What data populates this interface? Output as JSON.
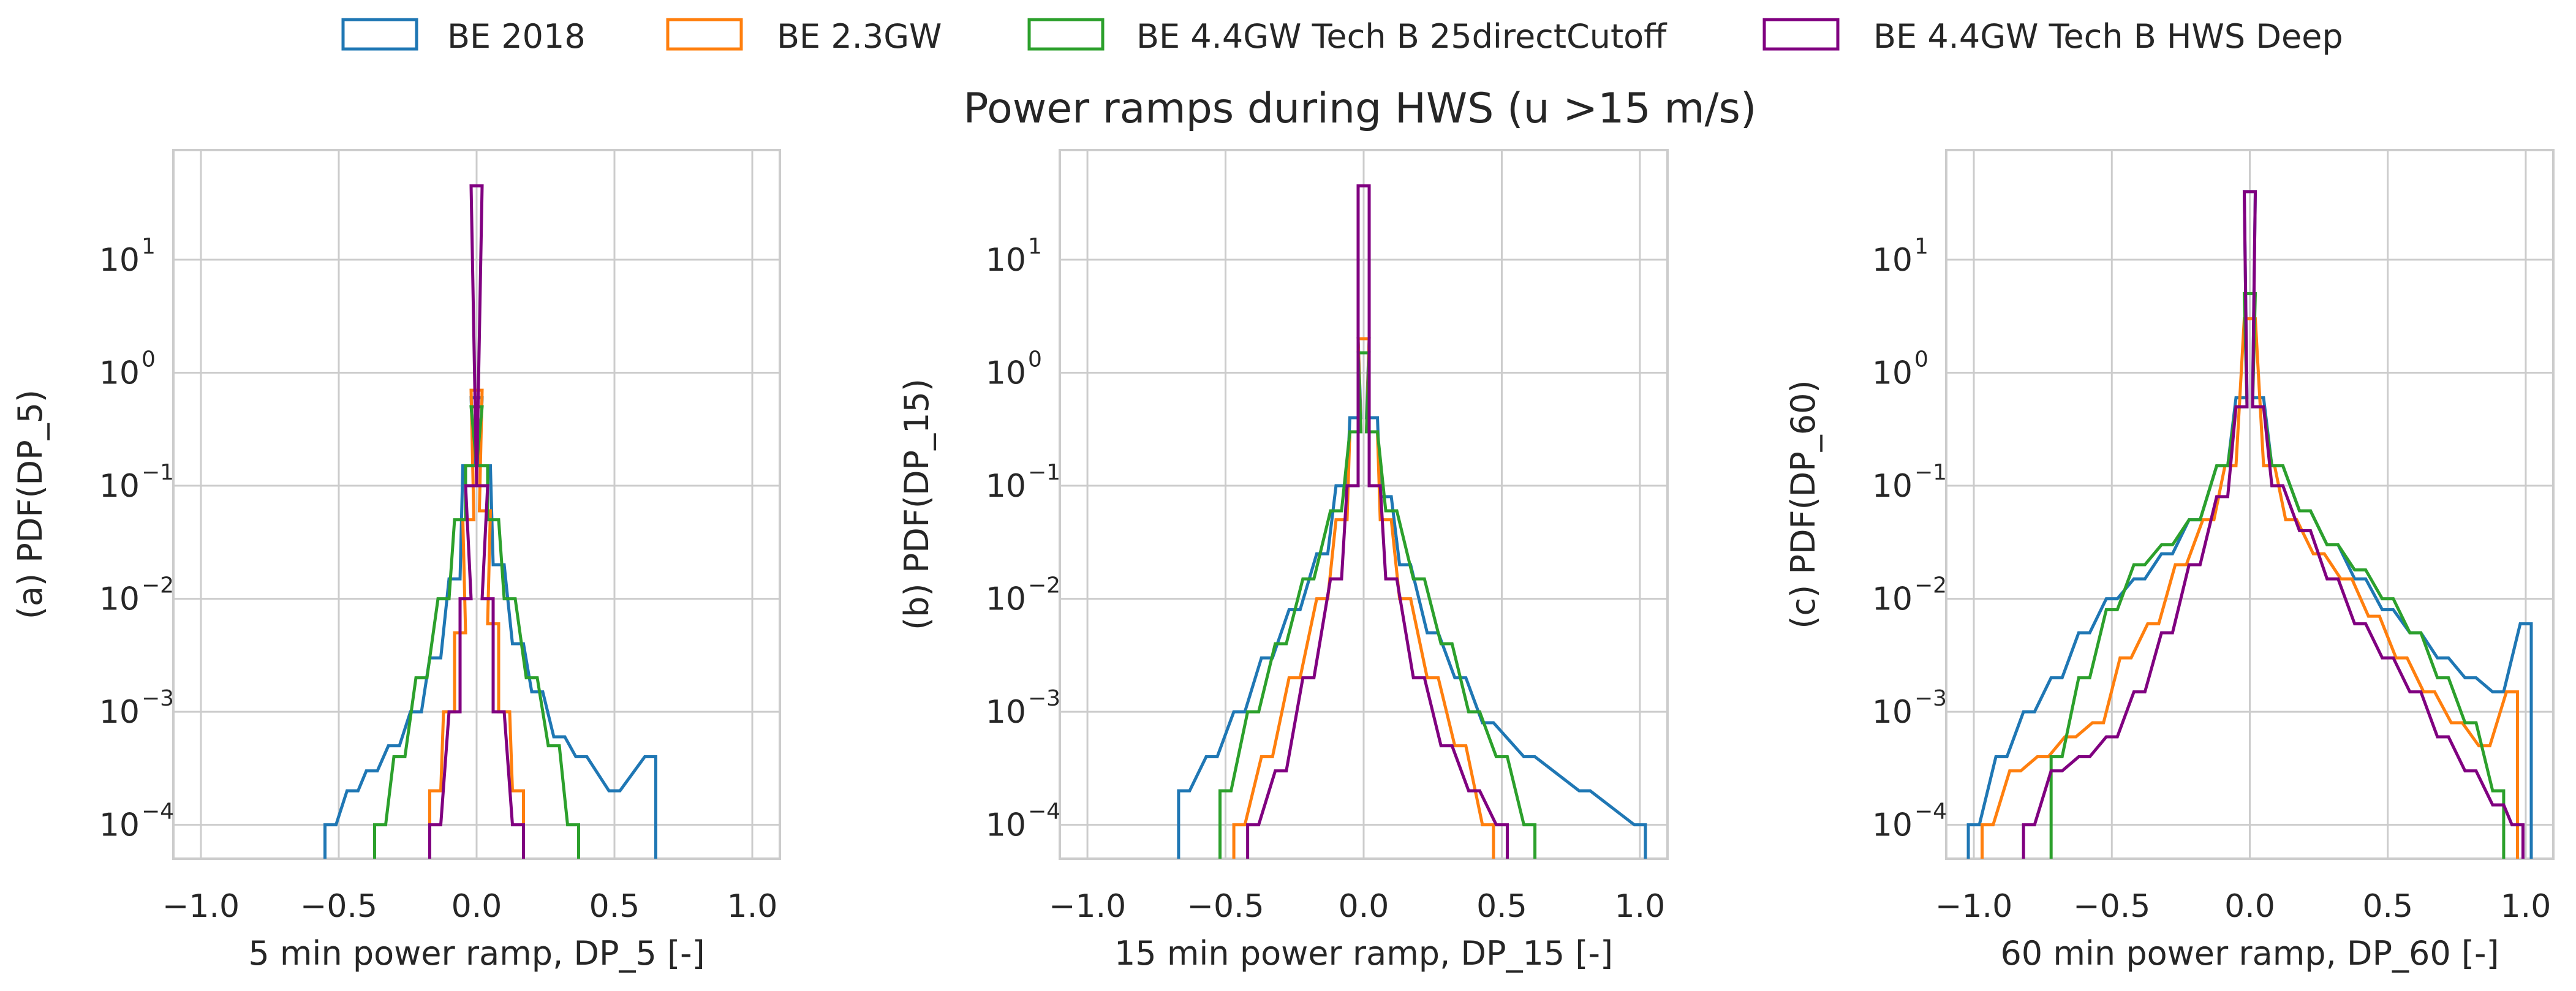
{
  "figure": {
    "title": "Power ramps during HWS (u >15 m/s)",
    "legend": [
      {
        "label": "BE 2018",
        "color": "#1f77b4"
      },
      {
        "label": "BE 2.3GW",
        "color": "#ff7f0e"
      },
      {
        "label": "BE 4.4GW Tech B 25directCutoff",
        "color": "#2ca02c"
      },
      {
        "label": "BE 4.4GW Tech B HWS Deep",
        "color": "#800080"
      }
    ]
  },
  "chart_data": [
    {
      "type": "histogram-step",
      "xlabel": "5 min power ramp, DP_5 [-]",
      "ylabel": "(a) PDF(DP_5)",
      "xlim": [
        -1.1,
        1.1
      ],
      "ylim_log10": [
        -4.3,
        1.97
      ],
      "yscale": "log",
      "grid": true,
      "xticks": [
        "-1.0",
        "-0.5",
        "0.0",
        "0.5",
        "1.0"
      ],
      "yticks_exp": [
        "1",
        "0",
        "-1",
        "-2",
        "-3",
        "-4"
      ],
      "series": [
        {
          "name": "BE 2018",
          "points": [
            [
              -0.53,
              0.0001
            ],
            [
              -0.45,
              0.0002
            ],
            [
              -0.38,
              0.0003
            ],
            [
              -0.3,
              0.0005
            ],
            [
              -0.22,
              0.001
            ],
            [
              -0.15,
              0.003
            ],
            [
              -0.08,
              0.015
            ],
            [
              -0.03,
              0.15
            ],
            [
              0,
              0.6
            ],
            [
              0.03,
              0.15
            ],
            [
              0.08,
              0.02
            ],
            [
              0.15,
              0.004
            ],
            [
              0.22,
              0.0015
            ],
            [
              0.3,
              0.0006
            ],
            [
              0.38,
              0.0004
            ],
            [
              0.5,
              0.0002
            ],
            [
              0.63,
              0.0004
            ]
          ]
        },
        {
          "name": "BE 2.3GW",
          "points": [
            [
              -0.15,
              0.0002
            ],
            [
              -0.1,
              0.001
            ],
            [
              -0.06,
              0.005
            ],
            [
              -0.03,
              0.05
            ],
            [
              0,
              0.7
            ],
            [
              0.03,
              0.06
            ],
            [
              0.06,
              0.006
            ],
            [
              0.1,
              0.001
            ],
            [
              0.15,
              0.0002
            ]
          ]
        },
        {
          "name": "BE 4.4GW Tech B 25directCutoff",
          "points": [
            [
              -0.35,
              0.0001
            ],
            [
              -0.28,
              0.0004
            ],
            [
              -0.2,
              0.002
            ],
            [
              -0.12,
              0.01
            ],
            [
              -0.06,
              0.05
            ],
            [
              -0.02,
              0.15
            ],
            [
              0,
              0.5
            ],
            [
              0.02,
              0.15
            ],
            [
              0.06,
              0.05
            ],
            [
              0.12,
              0.01
            ],
            [
              0.2,
              0.002
            ],
            [
              0.28,
              0.0005
            ],
            [
              0.35,
              0.0001
            ]
          ]
        },
        {
          "name": "BE 4.4GW Tech B HWS Deep",
          "points": [
            [
              -0.15,
              0.0001
            ],
            [
              -0.08,
              0.001
            ],
            [
              -0.04,
              0.01
            ],
            [
              -0.02,
              0.1
            ],
            [
              0,
              45
            ],
            [
              0.02,
              0.1
            ],
            [
              0.04,
              0.01
            ],
            [
              0.08,
              0.001
            ],
            [
              0.15,
              0.0001
            ]
          ]
        }
      ]
    },
    {
      "type": "histogram-step",
      "xlabel": "15 min power ramp, DP_15 [-]",
      "ylabel": "(b) PDF(DP_15)",
      "xlim": [
        -1.1,
        1.1
      ],
      "ylim_log10": [
        -4.3,
        1.97
      ],
      "yscale": "log",
      "grid": true,
      "xticks": [
        "-1.0",
        "-0.5",
        "0.0",
        "0.5",
        "1.0"
      ],
      "yticks_exp": [
        "1",
        "0",
        "-1",
        "-2",
        "-3",
        "-4"
      ],
      "series": [
        {
          "name": "BE 2018",
          "points": [
            [
              -0.65,
              0.0002
            ],
            [
              -0.55,
              0.0004
            ],
            [
              -0.45,
              0.001
            ],
            [
              -0.35,
              0.003
            ],
            [
              -0.25,
              0.008
            ],
            [
              -0.15,
              0.025
            ],
            [
              -0.08,
              0.1
            ],
            [
              -0.03,
              0.4
            ],
            [
              0,
              2
            ],
            [
              0.03,
              0.4
            ],
            [
              0.08,
              0.08
            ],
            [
              0.15,
              0.02
            ],
            [
              0.25,
              0.005
            ],
            [
              0.35,
              0.002
            ],
            [
              0.45,
              0.0008
            ],
            [
              0.6,
              0.0004
            ],
            [
              0.8,
              0.0002
            ],
            [
              1.0,
              0.0001
            ]
          ]
        },
        {
          "name": "BE 2.3GW",
          "points": [
            [
              -0.45,
              0.0001
            ],
            [
              -0.35,
              0.0004
            ],
            [
              -0.25,
              0.002
            ],
            [
              -0.15,
              0.01
            ],
            [
              -0.08,
              0.05
            ],
            [
              -0.03,
              0.3
            ],
            [
              0,
              2
            ],
            [
              0.03,
              0.3
            ],
            [
              0.08,
              0.05
            ],
            [
              0.15,
              0.01
            ],
            [
              0.25,
              0.002
            ],
            [
              0.35,
              0.0005
            ],
            [
              0.45,
              0.0001
            ]
          ]
        },
        {
          "name": "BE 4.4GW Tech B 25directCutoff",
          "points": [
            [
              -0.5,
              0.0002
            ],
            [
              -0.4,
              0.001
            ],
            [
              -0.3,
              0.004
            ],
            [
              -0.2,
              0.015
            ],
            [
              -0.1,
              0.06
            ],
            [
              -0.03,
              0.3
            ],
            [
              0,
              1.5
            ],
            [
              0.03,
              0.3
            ],
            [
              0.1,
              0.06
            ],
            [
              0.2,
              0.015
            ],
            [
              0.3,
              0.004
            ],
            [
              0.4,
              0.001
            ],
            [
              0.5,
              0.0004
            ],
            [
              0.6,
              0.0001
            ]
          ]
        },
        {
          "name": "BE 4.4GW Tech B HWS Deep",
          "points": [
            [
              -0.4,
              0.0001
            ],
            [
              -0.3,
              0.0003
            ],
            [
              -0.2,
              0.002
            ],
            [
              -0.1,
              0.015
            ],
            [
              -0.04,
              0.1
            ],
            [
              0,
              45
            ],
            [
              0.04,
              0.1
            ],
            [
              0.1,
              0.015
            ],
            [
              0.2,
              0.002
            ],
            [
              0.3,
              0.0005
            ],
            [
              0.4,
              0.0002
            ],
            [
              0.5,
              0.0001
            ]
          ]
        }
      ]
    },
    {
      "type": "histogram-step",
      "xlabel": "60 min power ramp, DP_60 [-]",
      "ylabel": "(c) PDF(DP_60)",
      "xlim": [
        -1.1,
        1.1
      ],
      "ylim_log10": [
        -4.3,
        1.97
      ],
      "yscale": "log",
      "grid": true,
      "xticks": [
        "-1.0",
        "-0.5",
        "0.0",
        "0.5",
        "1.0"
      ],
      "yticks_exp": [
        "1",
        "0",
        "-1",
        "-2",
        "-3",
        "-4"
      ],
      "series": [
        {
          "name": "BE 2018",
          "points": [
            [
              -1.0,
              0.0001
            ],
            [
              -0.9,
              0.0004
            ],
            [
              -0.8,
              0.001
            ],
            [
              -0.7,
              0.002
            ],
            [
              -0.6,
              0.005
            ],
            [
              -0.5,
              0.01
            ],
            [
              -0.4,
              0.015
            ],
            [
              -0.3,
              0.025
            ],
            [
              -0.2,
              0.05
            ],
            [
              -0.1,
              0.15
            ],
            [
              -0.03,
              0.6
            ],
            [
              0,
              40
            ],
            [
              0.03,
              0.6
            ],
            [
              0.1,
              0.15
            ],
            [
              0.2,
              0.06
            ],
            [
              0.3,
              0.03
            ],
            [
              0.4,
              0.015
            ],
            [
              0.5,
              0.008
            ],
            [
              0.6,
              0.005
            ],
            [
              0.7,
              0.003
            ],
            [
              0.8,
              0.002
            ],
            [
              0.9,
              0.0015
            ],
            [
              1.0,
              0.006
            ]
          ]
        },
        {
          "name": "BE 2.3GW",
          "points": [
            [
              -0.95,
              0.0001
            ],
            [
              -0.85,
              0.0003
            ],
            [
              -0.75,
              0.0004
            ],
            [
              -0.65,
              0.0006
            ],
            [
              -0.55,
              0.0008
            ],
            [
              -0.45,
              0.003
            ],
            [
              -0.35,
              0.006
            ],
            [
              -0.25,
              0.02
            ],
            [
              -0.15,
              0.05
            ],
            [
              -0.07,
              0.15
            ],
            [
              0,
              3
            ],
            [
              0.07,
              0.15
            ],
            [
              0.15,
              0.05
            ],
            [
              0.25,
              0.025
            ],
            [
              0.35,
              0.015
            ],
            [
              0.45,
              0.007
            ],
            [
              0.55,
              0.003
            ],
            [
              0.65,
              0.0015
            ],
            [
              0.75,
              0.0008
            ],
            [
              0.85,
              0.0005
            ],
            [
              0.95,
              0.0015
            ]
          ]
        },
        {
          "name": "BE 4.4GW Tech B 25directCutoff",
          "points": [
            [
              -0.7,
              0.0004
            ],
            [
              -0.6,
              0.002
            ],
            [
              -0.5,
              0.008
            ],
            [
              -0.4,
              0.02
            ],
            [
              -0.3,
              0.03
            ],
            [
              -0.2,
              0.05
            ],
            [
              -0.1,
              0.15
            ],
            [
              -0.03,
              0.5
            ],
            [
              0,
              5
            ],
            [
              0.03,
              0.5
            ],
            [
              0.1,
              0.15
            ],
            [
              0.2,
              0.06
            ],
            [
              0.3,
              0.03
            ],
            [
              0.4,
              0.018
            ],
            [
              0.5,
              0.01
            ],
            [
              0.6,
              0.005
            ],
            [
              0.7,
              0.002
            ],
            [
              0.8,
              0.0008
            ],
            [
              0.9,
              0.0002
            ]
          ]
        },
        {
          "name": "BE 4.4GW Tech B HWS Deep",
          "points": [
            [
              -0.8,
              0.0001
            ],
            [
              -0.7,
              0.0003
            ],
            [
              -0.6,
              0.0004
            ],
            [
              -0.5,
              0.0006
            ],
            [
              -0.4,
              0.0015
            ],
            [
              -0.3,
              0.005
            ],
            [
              -0.2,
              0.02
            ],
            [
              -0.1,
              0.08
            ],
            [
              -0.03,
              0.5
            ],
            [
              0,
              40
            ],
            [
              0.03,
              0.5
            ],
            [
              0.1,
              0.1
            ],
            [
              0.2,
              0.04
            ],
            [
              0.3,
              0.015
            ],
            [
              0.4,
              0.006
            ],
            [
              0.5,
              0.003
            ],
            [
              0.6,
              0.0015
            ],
            [
              0.7,
              0.0006
            ],
            [
              0.8,
              0.0003
            ],
            [
              0.9,
              0.00015
            ],
            [
              0.97,
              0.0001
            ]
          ]
        }
      ]
    }
  ]
}
